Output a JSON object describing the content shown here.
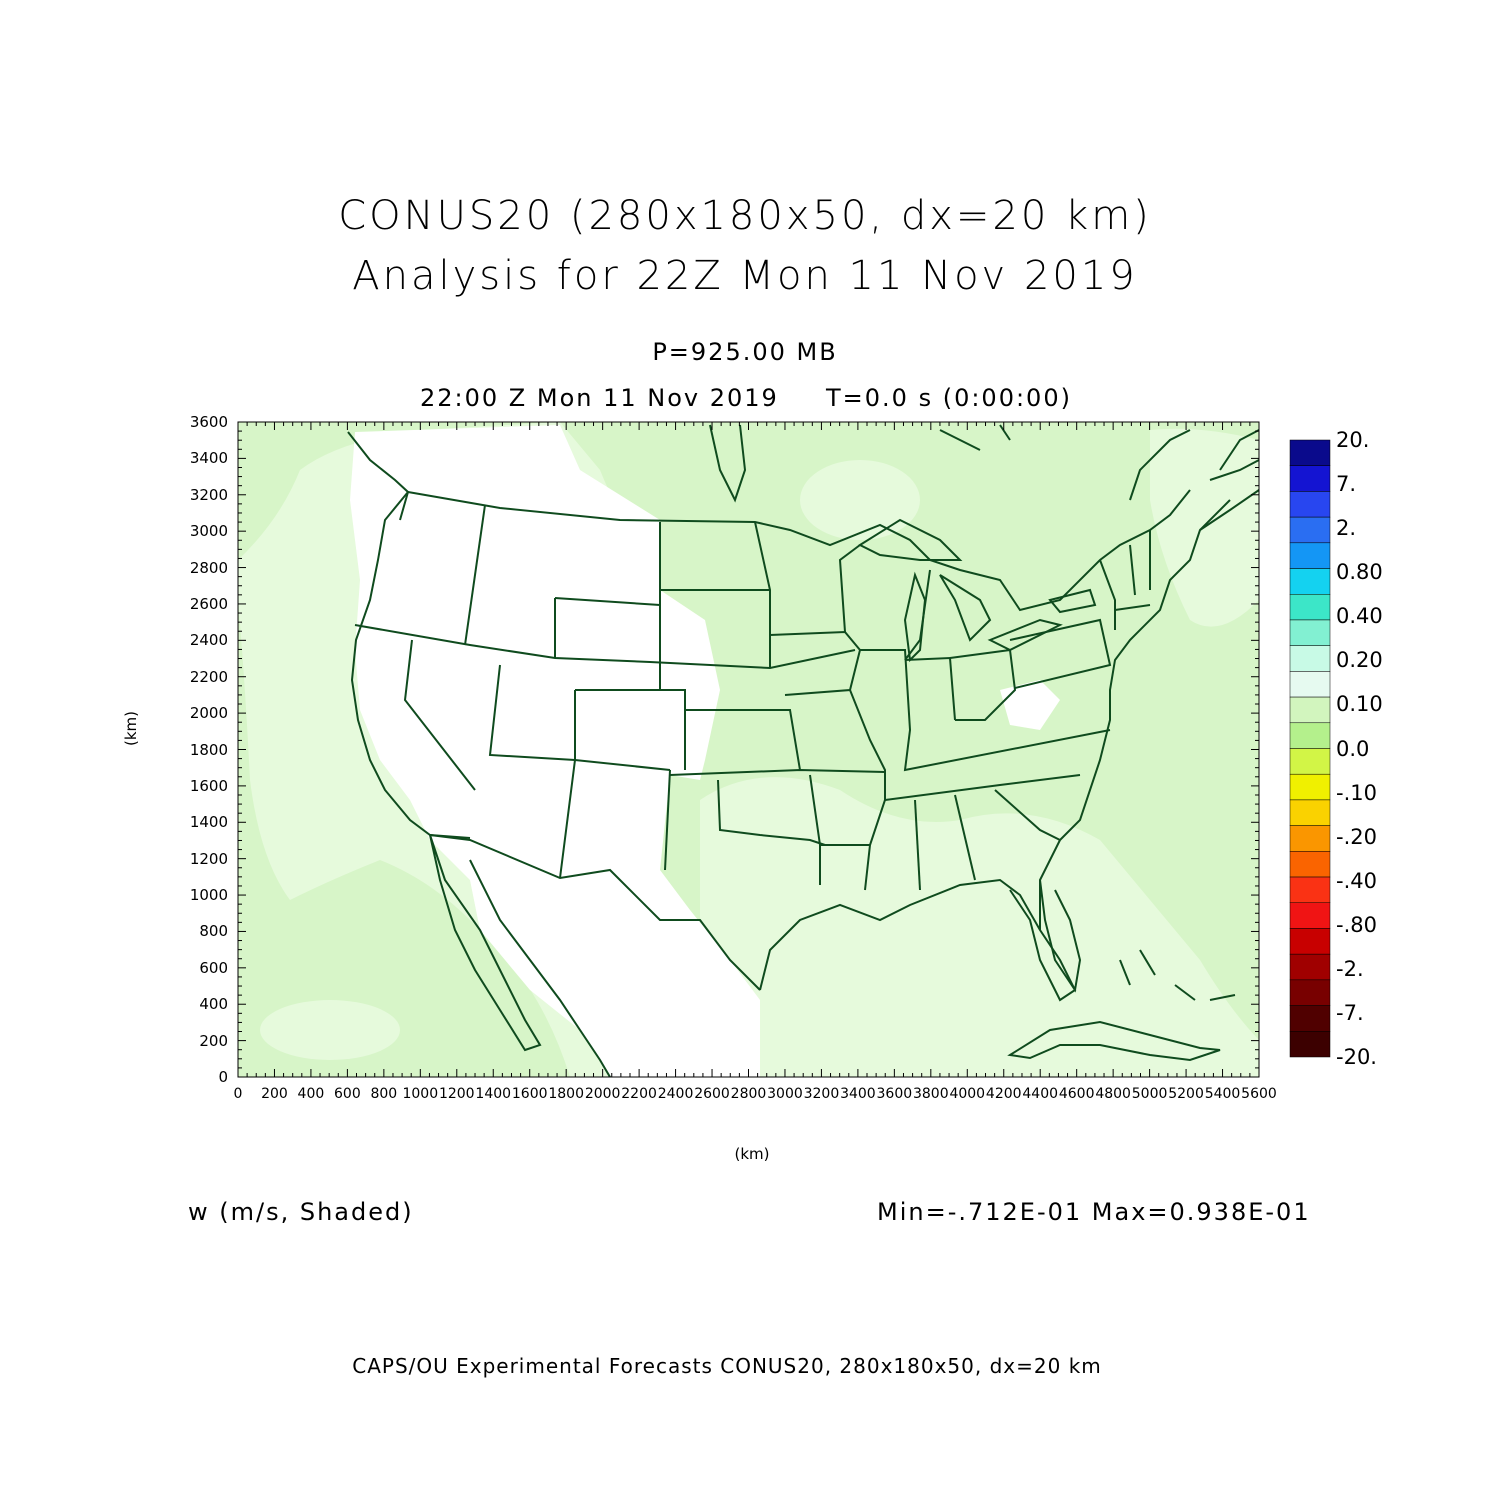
{
  "header": {
    "title_line1": "CONUS20 (280x180x50, dx=20 km)",
    "title_line2": "Analysis for 22Z Mon 11 Nov 2019",
    "level": "P=925.00 MB",
    "valid_time": "22:00 Z Mon 11 Nov 2019",
    "forecast_time": "T=0.0 s (0:00:00)"
  },
  "axes": {
    "xlabel": "(km)",
    "ylabel": "(km)",
    "xticks": [
      "0",
      "200",
      "400",
      "600",
      "800",
      "1000",
      "1200",
      "1400",
      "1600",
      "1800",
      "2000",
      "2200",
      "2400",
      "2600",
      "2800",
      "3000",
      "3200",
      "3400",
      "3600",
      "3800",
      "4000",
      "4200",
      "4400",
      "4600",
      "4800",
      "5000",
      "5200",
      "5400",
      "5600"
    ],
    "yticks": [
      "0",
      "200",
      "400",
      "600",
      "800",
      "1000",
      "1200",
      "1400",
      "1600",
      "1800",
      "2000",
      "2200",
      "2400",
      "2600",
      "2800",
      "3000",
      "3200",
      "3400",
      "3600"
    ],
    "xlim": [
      0,
      5600
    ],
    "ylim": [
      0,
      3600
    ]
  },
  "colorbar": {
    "labels": [
      "20.",
      "7.",
      "2.",
      "0.80",
      "0.40",
      "0.20",
      "0.10",
      "0.0",
      "-.10",
      "-.20",
      "-.40",
      "-.80",
      "-2.",
      "-7.",
      "-20."
    ],
    "colors": [
      "#0a0a8c",
      "#1414d2",
      "#2846f0",
      "#2a6ef2",
      "#1496f5",
      "#14d2f0",
      "#3ce6c8",
      "#82f0d2",
      "#c8fae6",
      "#e6faf0",
      "#d2f5be",
      "#b4f08c",
      "#d2f546",
      "#f0f000",
      "#fad200",
      "#fa9600",
      "#fa6400",
      "#fa3214",
      "#f01414",
      "#c80000",
      "#a00000",
      "#780000",
      "#500000",
      "#3c0000"
    ]
  },
  "map": {
    "field_fill_positive": "#e6fadc",
    "field_fill_negative": "#d7f5c8",
    "field_fill_light": "#ffffff",
    "boundary_color": "#0f4b1e"
  },
  "stats": {
    "variable": "w (m/s, Shaded)",
    "minmax": "Min=-.712E-01 Max=0.938E-01"
  },
  "footer": {
    "credit": "CAPS/OU Experimental Forecasts  CONUS20, 280x180x50, dx=20 km"
  }
}
